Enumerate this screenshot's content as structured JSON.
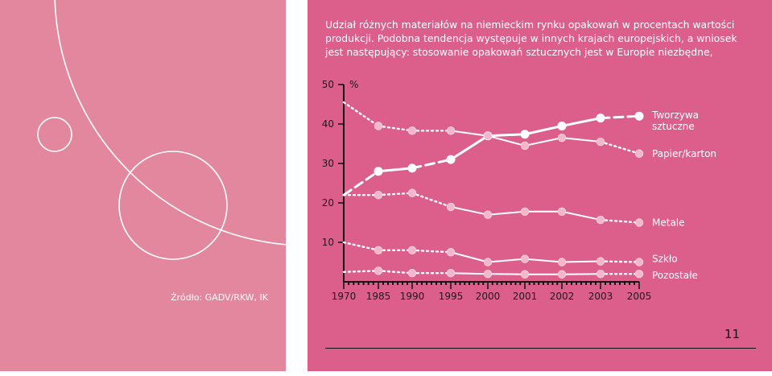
{
  "intro": {
    "line1": "Udział różnych materiałów na niemieckim rynku opakowań w procentach wartości",
    "line2": "produkcji. Podobna tendencja występuje w innych krajach europejskich, a wniosek",
    "line3": "jest następujący: stosowanie opakowań sztucznych jest w Europie niezbędne,"
  },
  "source": "Źródło: GADV/RKW, IK",
  "page_number": "11",
  "colors": {
    "left_panel": "#e3879f",
    "right_panel": "#db5f8a",
    "line": "#ffffff",
    "marker_light": "#f2b7c9"
  },
  "chart_data": {
    "type": "line",
    "x": [
      "1970",
      "1985",
      "1990",
      "1995",
      "2000",
      "2001",
      "2002",
      "2003",
      "2005"
    ],
    "ylim": [
      0,
      50
    ],
    "yticks": [
      "10",
      "20",
      "30",
      "40",
      "50"
    ],
    "yunit": "%",
    "grid": false,
    "legend_placement": "right-of-lines",
    "series": [
      {
        "name": "Tworzywa sztuczne",
        "values": [
          22,
          28,
          28.8,
          31,
          37,
          37.4,
          39.5,
          41.5,
          42
        ]
      },
      {
        "name": "Papier/karton",
        "values": [
          45.5,
          39.5,
          38.3,
          38.3,
          37,
          34.5,
          36.5,
          35.5,
          32.5
        ]
      },
      {
        "name": "Metale",
        "values": [
          22,
          22,
          22.5,
          19,
          17,
          17.8,
          17.8,
          15.7,
          15
        ]
      },
      {
        "name": "Szkło",
        "values": [
          10,
          8,
          8,
          7.5,
          5,
          5.8,
          5,
          5.2,
          5
        ]
      },
      {
        "name": "Pozostałe",
        "values": [
          2.5,
          2.8,
          2.2,
          2.2,
          2,
          1.9,
          1.9,
          2,
          2
        ]
      }
    ]
  }
}
